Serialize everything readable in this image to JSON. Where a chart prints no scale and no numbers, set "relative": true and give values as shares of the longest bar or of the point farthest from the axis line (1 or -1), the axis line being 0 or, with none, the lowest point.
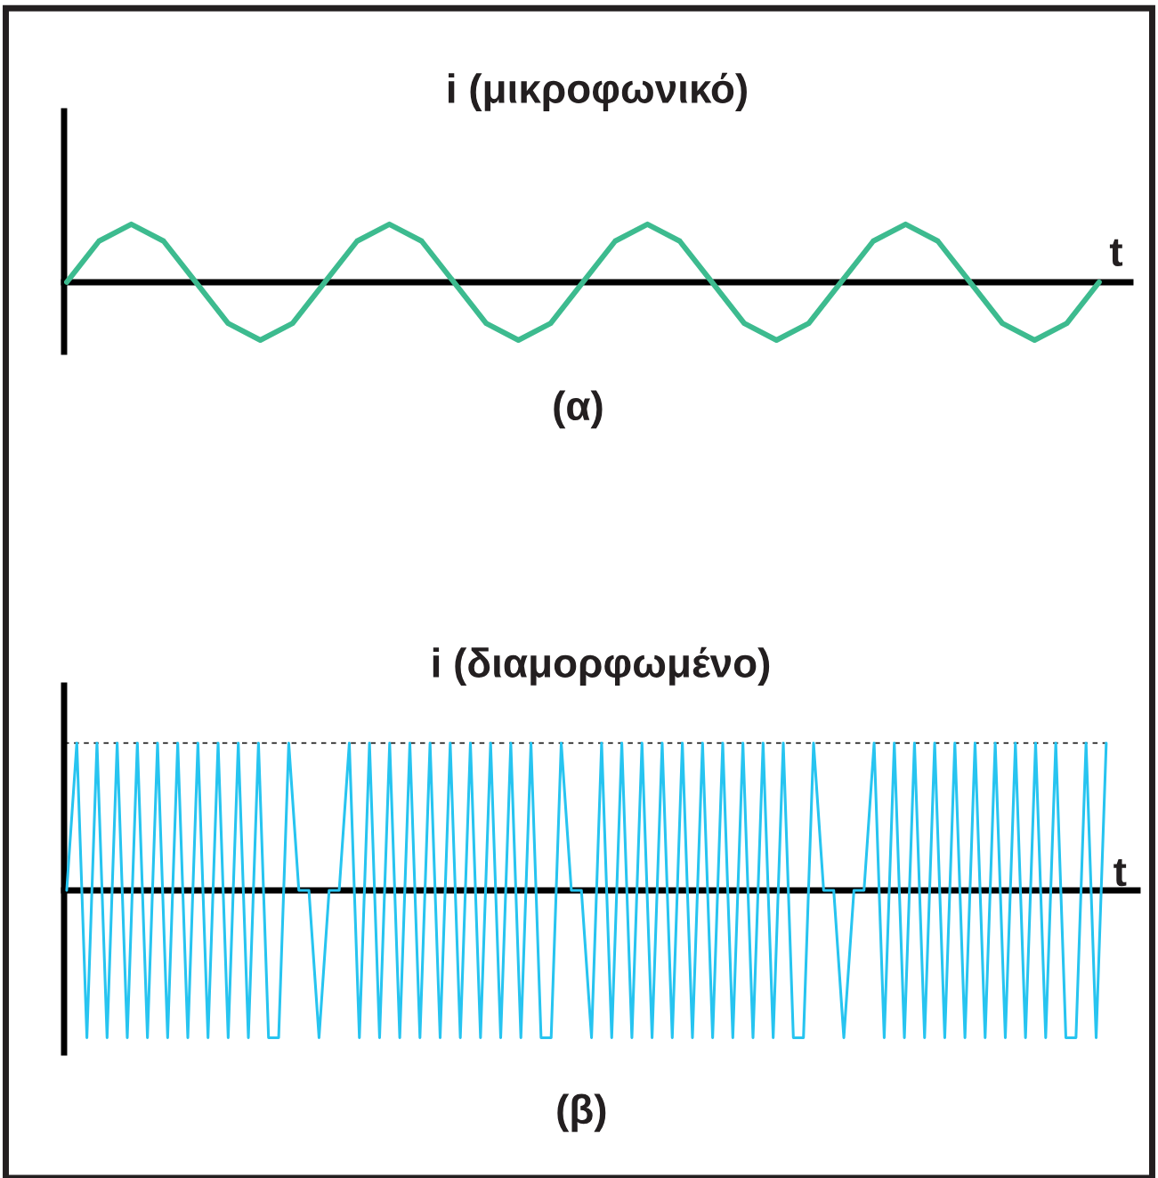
{
  "chart_data": [
    {
      "type": "line",
      "title": "i (μικροφωνικό)",
      "xlabel": "t",
      "annotations": [
        "(α)"
      ],
      "relative": true,
      "categories": [
        null,
        null,
        null,
        null,
        null,
        null,
        null,
        null,
        null,
        null,
        null,
        null,
        null,
        null,
        null,
        null,
        null,
        null,
        null,
        null,
        null,
        null,
        null,
        null,
        null,
        null,
        null,
        null,
        null,
        null,
        null,
        null,
        null
      ],
      "series": [
        {
          "color": "#3dbb8f",
          "values": [
            0,
            0.71,
            1,
            0.71,
            0,
            -0.71,
            -1,
            -0.71,
            0,
            0.71,
            1,
            0.71,
            0,
            -0.71,
            -1,
            -0.71,
            0,
            0.71,
            1,
            0.71,
            0,
            -0.71,
            -1,
            -0.71,
            0,
            0.71,
            1,
            0.71,
            0,
            -0.71,
            -1,
            -0.71,
            0
          ]
        }
      ]
    },
    {
      "type": "line",
      "title": "i (διαμορφωμένο)",
      "xlabel": "t",
      "annotations": [
        "(β)"
      ],
      "relative": true,
      "categories": [
        null,
        null,
        null,
        null,
        null,
        null,
        null,
        null,
        null,
        null,
        null,
        null,
        null,
        null,
        null,
        null,
        null,
        null,
        null,
        null,
        null,
        null,
        null,
        null,
        null,
        null,
        null,
        null,
        null,
        null,
        null,
        null,
        null,
        null,
        null,
        null,
        null,
        null,
        null,
        null,
        null,
        null,
        null,
        null,
        null,
        null,
        null,
        null,
        null,
        null,
        null,
        null,
        null,
        null,
        null,
        null,
        null,
        null,
        null,
        null,
        null,
        null,
        null,
        null,
        null,
        null,
        null,
        null,
        null,
        null,
        null,
        null,
        null,
        null,
        null,
        null,
        null,
        null,
        null,
        null,
        null,
        null,
        null,
        null,
        null,
        null,
        null,
        null,
        null,
        null,
        null,
        null,
        null,
        null,
        null,
        null,
        null,
        null,
        null,
        null,
        null,
        null,
        null,
        null
      ],
      "ref_lines": [
        {
          "axis": "y",
          "value": 1,
          "color": "#000000",
          "line_style": "dashed"
        }
      ],
      "series": [
        {
          "color": "#27c4f0",
          "values": [
            0,
            1,
            -1,
            1,
            -1,
            1,
            -1,
            1,
            -1,
            1,
            -1,
            1,
            -1,
            1,
            -1,
            1,
            -1,
            1,
            -1,
            1,
            -1,
            -1,
            1,
            0,
            0,
            -1,
            0,
            0,
            1,
            -1,
            1,
            -1,
            1,
            -1,
            1,
            -1,
            1,
            -1,
            1,
            -1,
            1,
            -1,
            1,
            -1,
            1,
            -1,
            1,
            -1,
            -1,
            1,
            0,
            0,
            -1,
            1,
            -1,
            1,
            -1,
            1,
            -1,
            1,
            -1,
            1,
            -1,
            1,
            -1,
            1,
            -1,
            1,
            -1,
            1,
            -1,
            1,
            -1,
            -1,
            1,
            0,
            0,
            -1,
            0,
            0,
            1,
            -1,
            1,
            -1,
            1,
            -1,
            1,
            -1,
            1,
            -1,
            1,
            -1,
            1,
            -1,
            1,
            -1,
            1,
            -1,
            1,
            -1,
            -1,
            1,
            -1,
            1
          ]
        }
      ]
    }
  ]
}
